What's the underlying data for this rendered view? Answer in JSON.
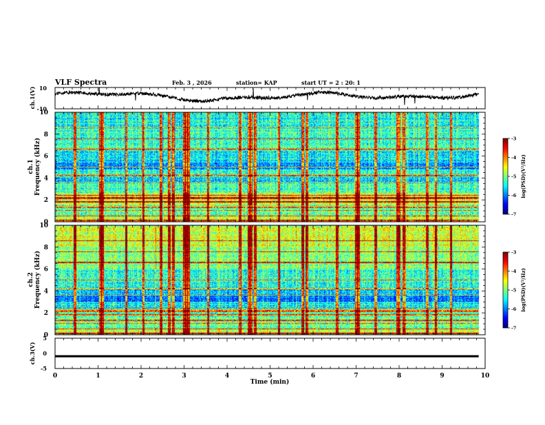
{
  "header": {
    "title": "VLF Spectra",
    "date": "Feb. 3 , 2026",
    "station": "station= KAP",
    "start": "start UT =  2 : 20: 1"
  },
  "chart_data": {
    "type": "heatmap",
    "title": "VLF Spectra",
    "panels": [
      {
        "name": "ch.1 waveform",
        "type": "line",
        "ylabel": "ch.1(V)",
        "ylim": [
          -10,
          10
        ],
        "yticks": [
          "10",
          "-10"
        ],
        "note": "noisy waveform oscillating roughly between -2 and 6 V"
      },
      {
        "name": "ch.1 spectrogram",
        "type": "heatmap",
        "ylabel": "ch.1",
        "ylabel2": "Frequency (kHz)",
        "ylim": [
          0,
          10
        ],
        "yticks": [
          "0",
          "2",
          "4",
          "6",
          "8",
          "10"
        ]
      },
      {
        "name": "ch.2 spectrogram",
        "type": "heatmap",
        "ylabel": "ch.2",
        "ylabel2": "Frequency (kHz)",
        "ylim": [
          0,
          10
        ],
        "yticks": [
          "0",
          "2",
          "4",
          "6",
          "8",
          "10"
        ]
      },
      {
        "name": "ch.3 waveform",
        "type": "line",
        "ylabel": "ch.3(V)",
        "ylim": [
          -5,
          5
        ],
        "yticks": [
          "5",
          "0",
          "-5"
        ],
        "note": "near-constant signal at about -1 V"
      }
    ],
    "xaxis": {
      "label": "Time (min)",
      "xlim": [
        0,
        10
      ],
      "ticks": [
        "0",
        "1",
        "2",
        "3",
        "4",
        "5",
        "6",
        "7",
        "8",
        "9",
        "10"
      ]
    },
    "colorbar": {
      "label": "log(PSD)(V²/Hz)",
      "range": [
        -7,
        -3
      ],
      "ticks": [
        "-3",
        "-4",
        "-5",
        "-6",
        "-7"
      ]
    },
    "features": {
      "data_end_min": 9.85,
      "ch1_bands_khz": [
        {
          "lo": 0.0,
          "hi": 0.6,
          "level": -4.8
        },
        {
          "lo": 0.6,
          "hi": 1.5,
          "level": -5.2
        },
        {
          "lo": 1.5,
          "hi": 2.6,
          "level": -4.7
        },
        {
          "lo": 2.6,
          "hi": 3.5,
          "level": -5.3
        },
        {
          "lo": 3.5,
          "hi": 4.1,
          "level": -5.7
        },
        {
          "lo": 4.1,
          "hi": 4.8,
          "level": -5.4
        },
        {
          "lo": 4.8,
          "hi": 5.4,
          "level": -6.0
        },
        {
          "lo": 5.4,
          "hi": 6.5,
          "level": -5.6
        },
        {
          "lo": 6.5,
          "hi": 8.5,
          "level": -5.3
        },
        {
          "lo": 8.5,
          "hi": 10.0,
          "level": -5.5
        }
      ],
      "ch2_bands_khz": [
        {
          "lo": 0.0,
          "hi": 0.6,
          "level": -4.8
        },
        {
          "lo": 0.6,
          "hi": 1.6,
          "level": -5.1
        },
        {
          "lo": 1.6,
          "hi": 2.2,
          "level": -5.3
        },
        {
          "lo": 2.2,
          "hi": 3.0,
          "level": -5.5
        },
        {
          "lo": 3.0,
          "hi": 3.7,
          "level": -6.1
        },
        {
          "lo": 3.7,
          "hi": 4.3,
          "level": -5.7
        },
        {
          "lo": 4.3,
          "hi": 6.0,
          "level": -5.4
        },
        {
          "lo": 6.0,
          "hi": 8.0,
          "level": -5.0
        },
        {
          "lo": 8.0,
          "hi": 10.0,
          "level": -4.7
        }
      ],
      "harmonic_lines_khz": [
        0.1,
        0.5,
        1.0,
        1.3,
        1.8,
        2.1,
        2.2,
        2.4,
        3.6,
        4.2,
        5.0,
        6.6,
        7.6,
        8.6
      ],
      "impulse_times_min": [
        0.45,
        1.05,
        1.1,
        1.65,
        2.05,
        2.45,
        2.65,
        2.75,
        3.0,
        3.05,
        3.1,
        3.55,
        4.3,
        4.5,
        4.55,
        4.65,
        5.2,
        5.75,
        5.85,
        6.55,
        7.0,
        7.05,
        7.45,
        7.95,
        8.0,
        8.1,
        8.65,
        8.85,
        9.2
      ]
    }
  }
}
